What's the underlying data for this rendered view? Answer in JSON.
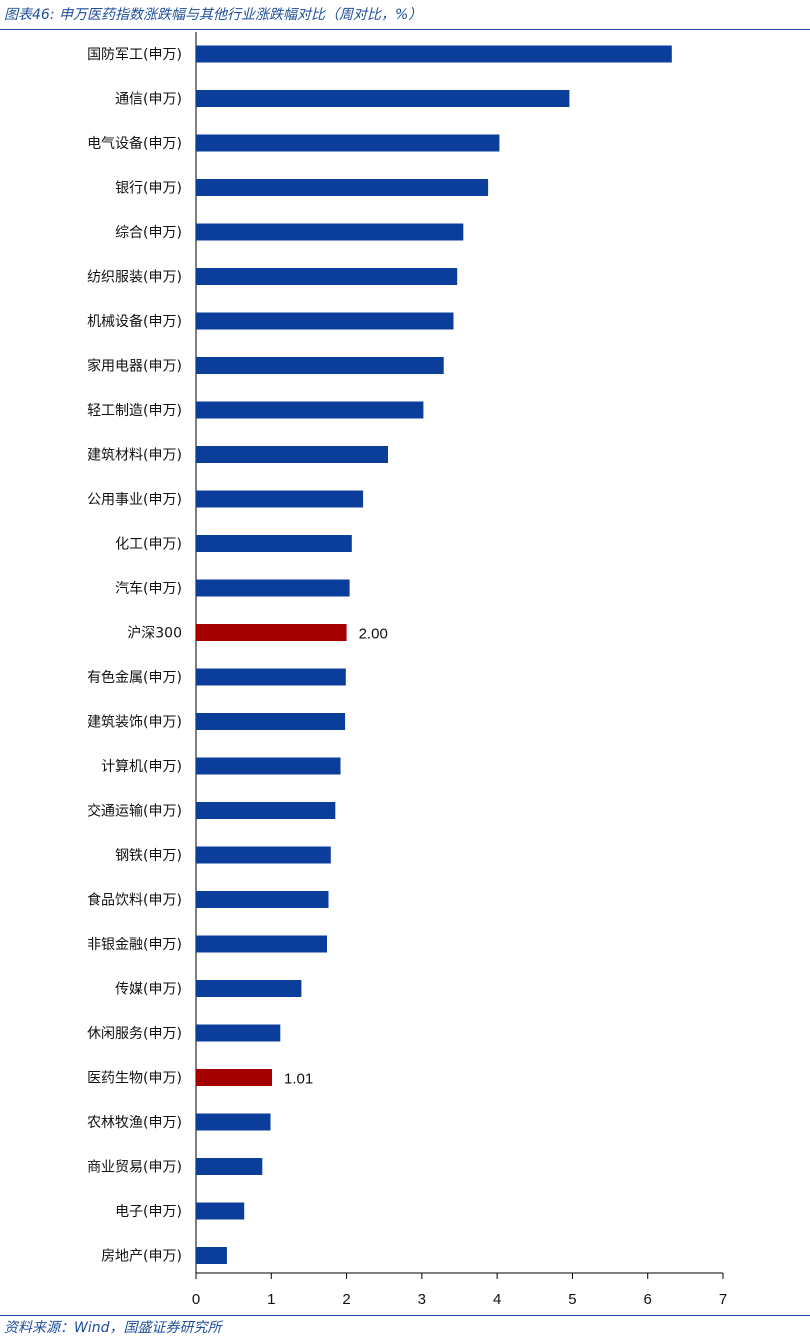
{
  "figure": {
    "title": "图表46:  申万医药指数涨跌幅与其他行业涨跌幅对比（周对比，%）",
    "source": "资料来源：Wind，国盛证券研究所"
  },
  "colors": {
    "bar_default": "#0b3d9b",
    "bar_highlight": "#a50000",
    "rule": "#1f4e9c",
    "axis": "#000000"
  },
  "chart_data": {
    "type": "bar",
    "orientation": "horizontal",
    "categories": [
      "国防军工(申万)",
      "通信(申万)",
      "电气设备(申万)",
      "银行(申万)",
      "综合(申万)",
      "纺织服装(申万)",
      "机械设备(申万)",
      "家用电器(申万)",
      "轻工制造(申万)",
      "建筑材料(申万)",
      "公用事业(申万)",
      "化工(申万)",
      "汽车(申万)",
      "沪深300",
      "有色金属(申万)",
      "建筑装饰(申万)",
      "计算机(申万)",
      "交通运输(申万)",
      "钢铁(申万)",
      "食品饮料(申万)",
      "非银金融(申万)",
      "传媒(申万)",
      "休闲服务(申万)",
      "医药生物(申万)",
      "农林牧渔(申万)",
      "商业贸易(申万)",
      "电子(申万)",
      "房地产(申万)"
    ],
    "values": [
      6.32,
      4.96,
      4.03,
      3.88,
      3.55,
      3.47,
      3.42,
      3.29,
      3.02,
      2.55,
      2.22,
      2.07,
      2.04,
      2.0,
      1.99,
      1.98,
      1.92,
      1.85,
      1.79,
      1.76,
      1.74,
      1.4,
      1.12,
      1.01,
      0.99,
      0.88,
      0.64,
      0.41
    ],
    "highlight": [
      "沪深300",
      "医药生物(申万)"
    ],
    "data_labels": {
      "沪深300": "2.00",
      "医药生物(申万)": "1.01"
    },
    "x_ticks": [
      "0",
      "1",
      "2",
      "3",
      "4",
      "5",
      "6",
      "7"
    ],
    "xlim": [
      0,
      7
    ],
    "xlabel": "",
    "ylabel": "",
    "grid": false,
    "legend": "none"
  }
}
